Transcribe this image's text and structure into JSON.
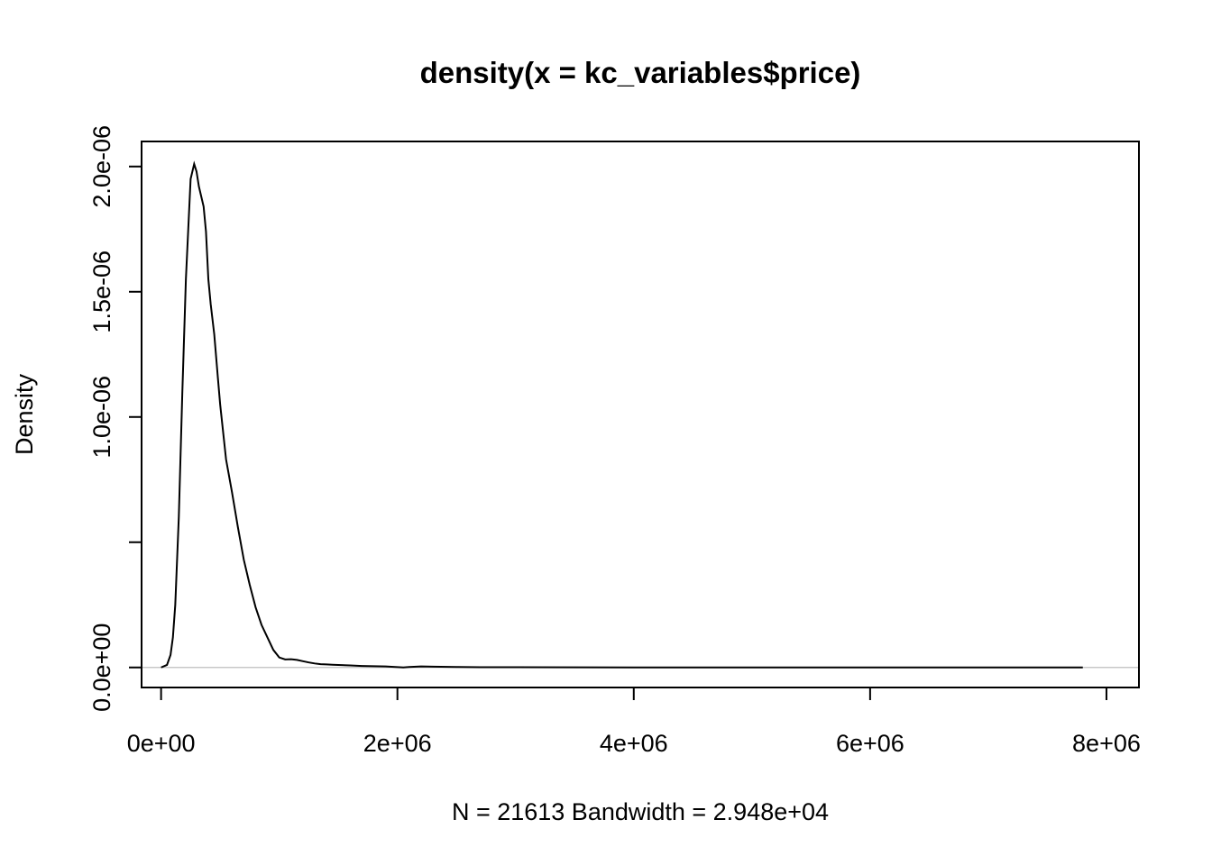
{
  "chart_data": {
    "type": "line",
    "title": "density(x = kc_variables$price)",
    "xlabel": "N = 21613   Bandwidth = 2.948e+04",
    "ylabel": "Density",
    "xlim": [
      -165000,
      8275000
    ],
    "ylim": [
      -8e-08,
      2.1e-06
    ],
    "x_ticks": [
      0,
      2000000,
      4000000,
      6000000,
      8000000
    ],
    "x_tick_labels": [
      "0e+00",
      "2e+06",
      "4e+06",
      "6e+06",
      "8e+06"
    ],
    "y_ticks": [
      0,
      5e-07,
      1e-06,
      1.5e-06,
      2e-06
    ],
    "y_tick_labels": [
      "0.0e+00",
      "",
      "1.0e-06",
      "1.5e-06",
      "2.0e-06"
    ],
    "zero_line": true,
    "grid": false,
    "legend": "none",
    "series": [
      {
        "color": "#000000",
        "x": [
          0,
          50000,
          80000,
          100000,
          120000,
          150000,
          180000,
          210000,
          250000,
          280000,
          300000,
          320000,
          340000,
          360000,
          380000,
          400000,
          420000,
          450000,
          480000,
          500000,
          550000,
          600000,
          650000,
          700000,
          750000,
          800000,
          850000,
          900000,
          950000,
          1000000,
          1050000,
          1100000,
          1150000,
          1200000,
          1250000,
          1300000,
          1350000,
          1400000,
          1450000,
          1500000,
          1600000,
          1700000,
          1800000,
          1900000,
          2000000,
          2050000,
          2100000,
          2200000,
          2300000,
          2500000,
          2700000,
          3000000,
          3500000,
          4000000,
          5000000,
          6000000,
          7000000,
          7800000
        ],
        "y": [
          0,
          1e-08,
          5e-08,
          1.2e-07,
          2.5e-07,
          6e-07,
          1.1e-06,
          1.55e-06,
          1.95e-06,
          2.01e-06,
          1.98e-06,
          1.92e-06,
          1.88e-06,
          1.84e-06,
          1.74e-06,
          1.55e-06,
          1.45e-06,
          1.33e-06,
          1.16e-06,
          1.05e-06,
          8.3e-07,
          7e-07,
          5.6e-07,
          4.3e-07,
          3.3e-07,
          2.4e-07,
          1.7e-07,
          1.2e-07,
          7e-08,
          4e-08,
          3.2e-08,
          3.3e-08,
          3e-08,
          2.5e-08,
          2e-08,
          1.6e-08,
          1.3e-08,
          1.2e-08,
          1.1e-08,
          1e-08,
          8e-09,
          6e-09,
          5e-09,
          4e-09,
          1.5e-09,
          0,
          2e-09,
          4e-09,
          3e-09,
          2e-09,
          1e-09,
          8e-10,
          4e-10,
          2e-10,
          1e-10,
          1e-10,
          0,
          0
        ]
      }
    ]
  }
}
